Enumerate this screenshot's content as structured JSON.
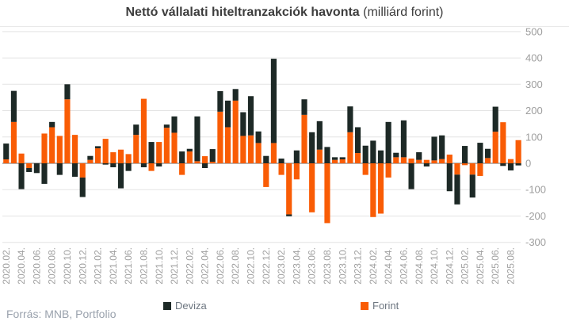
{
  "header": {
    "title_bold": "Nettó vállalati hiteltranzakciók havonta",
    "title_normal": " (milliárd forint)"
  },
  "footer": {
    "source": "Forrás: MNB, Portfolio"
  },
  "legend": [
    {
      "label": "Deviza",
      "color": "#1d2926"
    },
    {
      "label": "Forint",
      "color": "#f95c05"
    }
  ],
  "colors": {
    "background": "#ffffff",
    "gridline": "#e4e4e4",
    "zero_line": "#9c9c9c",
    "axis_text": "#a0a0a0",
    "title_text": "#3d3d3d",
    "deviza": "#1d2926",
    "forint": "#f95c05"
  },
  "chart_data": {
    "type": "bar",
    "stacked": true,
    "title": "Nettó vállalati hiteltranzakciók havonta (milliárd forint)",
    "unit": "milliárd forint",
    "ylim": [
      -300,
      500
    ],
    "yticks": [
      500,
      400,
      300,
      200,
      100,
      0,
      -100,
      -200,
      -300
    ],
    "grid": true,
    "legend_position": "bottom",
    "x_tick_every": 2,
    "stack_adjacent_to_zero": "Forint",
    "categories": [
      "2020.02.",
      "2020.03.",
      "2020.04.",
      "2020.05.",
      "2020.06.",
      "2020.07.",
      "2020.08.",
      "2020.09.",
      "2020.10.",
      "2020.11.",
      "2020.12.",
      "2021.01.",
      "2021.02.",
      "2021.03.",
      "2021.04.",
      "2021.05.",
      "2021.06.",
      "2021.07.",
      "2021.08.",
      "2021.09.",
      "2021.10.",
      "2021.11.",
      "2021.12.",
      "2022.01.",
      "2022.02.",
      "2022.03.",
      "2022.04.",
      "2022.05.",
      "2022.06.",
      "2022.07.",
      "2022.08.",
      "2022.09.",
      "2022.10.",
      "2022.11.",
      "2022.12.",
      "2023.01.",
      "2023.02.",
      "2023.03.",
      "2023.04.",
      "2023.05.",
      "2023.06.",
      "2023.07.",
      "2023.08.",
      "2023.09.",
      "2023.10.",
      "2023.11.",
      "2023.12.",
      "2024.01.",
      "2024.02.",
      "2024.03.",
      "2024.04.",
      "2024.05.",
      "2024.06.",
      "2024.07.",
      "2024.08.",
      "2024.09.",
      "2024.10.",
      "2024.11.",
      "2024.12.",
      "2025.01.",
      "2025.02.",
      "2025.03.",
      "2025.04.",
      "2025.05.",
      "2025.06.",
      "2025.07.",
      "2025.08.",
      "2025.09."
    ],
    "series": [
      {
        "name": "Deviza",
        "color": "#1d2926",
        "values": [
          60,
          118,
          -98,
          -15,
          -37,
          -78,
          20,
          -44,
          57,
          -51,
          -74,
          15,
          8,
          -5,
          -15,
          -95,
          -29,
          39,
          -15,
          81,
          -12,
          12,
          62,
          45,
          10,
          170,
          -18,
          48,
          78,
          101,
          44,
          90,
          149,
          44,
          28,
          320,
          18,
          -7,
          49,
          59,
          118,
          108,
          62,
          10,
          8,
          98,
          98,
          67,
          86,
          49,
          157,
          17,
          140,
          -98,
          29,
          -12,
          90,
          90,
          -106,
          -113,
          66,
          -87,
          78,
          35,
          95,
          -10,
          -27,
          -8
        ]
      },
      {
        "name": "Forint",
        "color": "#f95c05",
        "values": [
          15,
          157,
          37,
          -18,
          0,
          113,
          137,
          104,
          243,
          108,
          -54,
          13,
          57,
          93,
          42,
          52,
          35,
          108,
          245,
          -29,
          81,
          135,
          116,
          -44,
          45,
          8,
          27,
          6,
          196,
          137,
          238,
          104,
          106,
          77,
          -90,
          77,
          -44,
          -194,
          -61,
          184,
          -186,
          52,
          -227,
          13,
          15,
          118,
          39,
          -44,
          -204,
          -191,
          -54,
          23,
          23,
          18,
          13,
          13,
          11,
          16,
          33,
          -43,
          -7,
          -43,
          -48,
          20,
          120,
          156,
          16,
          88
        ]
      }
    ]
  }
}
